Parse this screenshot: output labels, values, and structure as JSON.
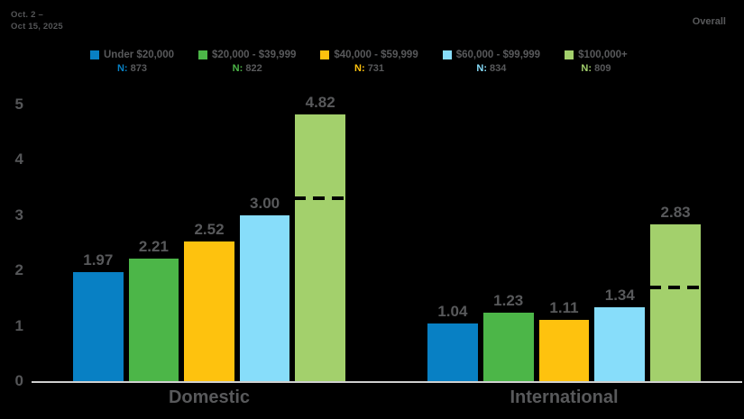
{
  "page": {
    "background": "#000000"
  },
  "header": {
    "date_line1": "Oct. 2 –",
    "date_line2": "Oct 15, 2025",
    "overall_label": "Overall"
  },
  "colors": {
    "text_gray": "#58595b",
    "axis_line": "#cfcfcf",
    "dashed_line": "#000000",
    "background": "#000000"
  },
  "chart_data": {
    "type": "bar",
    "title": "",
    "categories": [
      "Domestic",
      "International"
    ],
    "series": [
      {
        "name": "Under $20,000",
        "n_prefix": "N:",
        "n": "873",
        "color": "#0880c4",
        "values": [
          1.97,
          1.04
        ],
        "labels": [
          "1.97",
          "1.04"
        ]
      },
      {
        "name": "$20,000 - $39,999",
        "n_prefix": "N:",
        "n": "822",
        "color": "#4cb648",
        "values": [
          2.21,
          1.23
        ],
        "labels": [
          "2.21",
          "1.23"
        ]
      },
      {
        "name": "$40,000 - $59,999",
        "n_prefix": "N:",
        "n": "731",
        "color": "#fec20e",
        "values": [
          2.52,
          1.11
        ],
        "labels": [
          "2.52",
          "1.11"
        ]
      },
      {
        "name": "$60,000 - $99,999",
        "n_prefix": "N:",
        "n": "834",
        "color": "#87ddfa",
        "values": [
          3.0,
          1.34
        ],
        "labels": [
          "3.00",
          "1.34"
        ]
      },
      {
        "name": "$100,000+",
        "n_prefix": "N:",
        "n": "809",
        "color": "#a3d06c",
        "values": [
          4.82,
          2.83
        ],
        "labels": [
          "4.82",
          "2.83"
        ]
      }
    ],
    "overall_line": {
      "style": "dashed",
      "color": "#000000",
      "applies_to_series": "$100,000+",
      "values_estimated": [
        3.3,
        1.7
      ]
    },
    "ylim": [
      0,
      5
    ],
    "yticks": [
      "0",
      "1",
      "2",
      "3",
      "4",
      "5"
    ],
    "grid": false,
    "legend_position": "top"
  }
}
